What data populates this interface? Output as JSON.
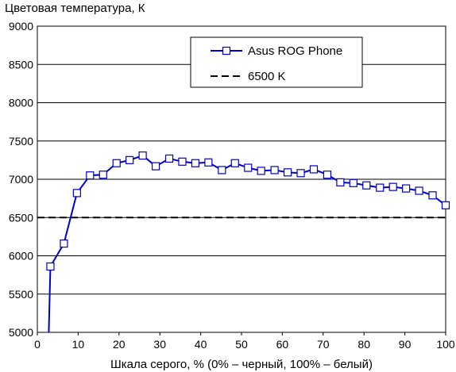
{
  "chart_data": {
    "type": "line",
    "title": "",
    "ylabel": "Цветовая температура, К",
    "xlabel": "Шкала серого, % (0% – черный, 100% – белый)",
    "xlim": [
      0,
      100
    ],
    "ylim": [
      5000,
      9000
    ],
    "x_ticks": [
      0,
      10,
      20,
      30,
      40,
      50,
      60,
      70,
      80,
      90,
      100
    ],
    "y_ticks": [
      5000,
      5500,
      6000,
      6500,
      7000,
      7500,
      8000,
      8500,
      9000
    ],
    "grid": "horizontal",
    "legend_position": "top-right",
    "series": [
      {
        "name": "Asus ROG Phone",
        "color": "#0000cc",
        "marker": "square",
        "x": [
          3.2,
          6.5,
          9.7,
          12.9,
          16.1,
          19.4,
          22.6,
          25.8,
          29.0,
          32.3,
          35.5,
          38.7,
          41.9,
          45.2,
          48.4,
          51.6,
          54.8,
          58.1,
          61.3,
          64.5,
          67.7,
          71.0,
          74.2,
          77.4,
          80.6,
          83.9,
          87.1,
          90.3,
          93.5,
          96.8,
          100
        ],
        "y": [
          5860,
          6160,
          6820,
          7050,
          7060,
          7210,
          7250,
          7310,
          7170,
          7270,
          7230,
          7210,
          7220,
          7120,
          7210,
          7150,
          7110,
          7120,
          7090,
          7080,
          7130,
          7060,
          6960,
          6950,
          6920,
          6890,
          6900,
          6880,
          6850,
          6790,
          6660
        ],
        "tail_from": {
          "x": 2.8,
          "y": 5000
        }
      },
      {
        "name": "6500 K",
        "color": "#000000",
        "style": "dashed",
        "x": [
          0,
          100
        ],
        "y": [
          6500,
          6500
        ]
      }
    ]
  }
}
